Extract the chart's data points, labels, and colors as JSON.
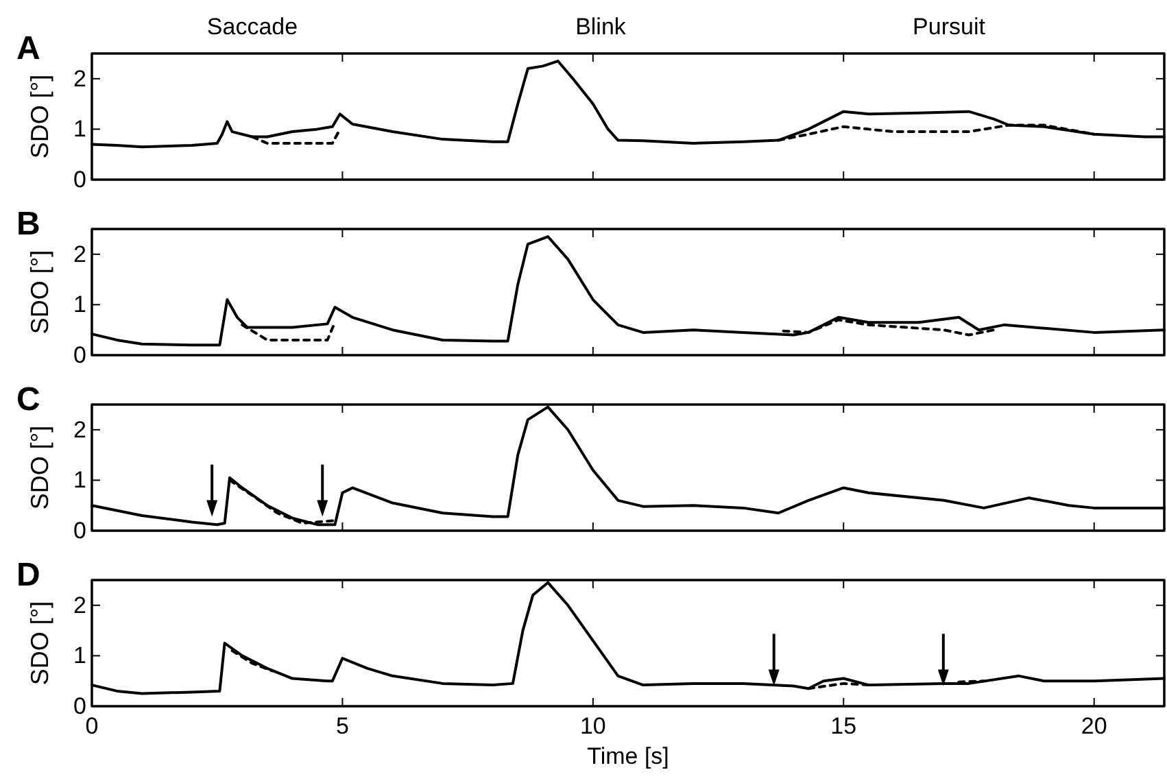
{
  "chart_data": [
    {
      "type": "line",
      "title": "A",
      "ylabel": "SDO [°]",
      "xlim": [
        0,
        21.4
      ],
      "xticks": [
        0,
        5,
        10,
        15,
        20
      ],
      "ylim": [
        0,
        2.5
      ],
      "yticks": [
        0,
        1,
        2
      ],
      "tick_labels": "y",
      "line_style": "solid",
      "annotations": [
        "Saccade",
        "Blink",
        "Pursuit"
      ],
      "series": [
        {
          "color": "#000000",
          "x": [
            0,
            0.5,
            1,
            2,
            2.5,
            2.6,
            2.7,
            2.8,
            3.2,
            3.5,
            4,
            4.5,
            4.8,
            4.95,
            5.2,
            6,
            7,
            8,
            8.3,
            8.5,
            8.7,
            9,
            9.3,
            9.6,
            10,
            10.3,
            10.5,
            11,
            12,
            13,
            13.7,
            14.3,
            15,
            15.5,
            16.5,
            17.5,
            18,
            18.3,
            19,
            20,
            21,
            21.4
          ],
          "values": [
            0.7,
            0.68,
            0.65,
            0.68,
            0.72,
            0.9,
            1.15,
            0.95,
            0.85,
            0.85,
            0.95,
            1.0,
            1.05,
            1.3,
            1.1,
            0.95,
            0.8,
            0.75,
            0.75,
            1.5,
            2.2,
            2.25,
            2.35,
            2.0,
            1.5,
            1.0,
            0.78,
            0.77,
            0.72,
            0.75,
            0.78,
            1.0,
            1.35,
            1.3,
            1.32,
            1.35,
            1.2,
            1.08,
            1.05,
            0.9,
            0.85,
            0.85
          ]
        },
        {
          "color": "#000000",
          "line_style": "dashed",
          "x": [
            3.2,
            3.5,
            4.8,
            4.95,
            10,
            13.7,
            14.3,
            15,
            16,
            17.5,
            18.3,
            19,
            20
          ],
          "values": [
            0.85,
            0.72,
            0.72,
            1.0,
            null,
            0.78,
            0.9,
            1.05,
            0.95,
            0.95,
            1.08,
            1.08,
            0.9
          ]
        }
      ]
    },
    {
      "type": "line",
      "title": "B",
      "ylabel": "SDO [°]",
      "xlim": [
        0,
        21.4
      ],
      "xticks": [
        0,
        5,
        10,
        15,
        20
      ],
      "ylim": [
        0,
        2.5
      ],
      "yticks": [
        0,
        1,
        2
      ],
      "tick_labels": "y",
      "line_style": "solid",
      "series": [
        {
          "color": "#000000",
          "x": [
            0,
            0.5,
            1,
            2,
            2.55,
            2.7,
            2.9,
            3.1,
            4,
            4.7,
            4.85,
            5.2,
            6,
            7,
            8,
            8.3,
            8.5,
            8.7,
            9.1,
            9.5,
            10,
            10.5,
            11,
            12,
            13,
            14,
            14.3,
            14.9,
            15.5,
            16.5,
            17.3,
            17.7,
            18.2,
            18.8,
            20,
            21.4
          ],
          "values": [
            0.42,
            0.3,
            0.22,
            0.2,
            0.2,
            1.1,
            0.75,
            0.55,
            0.55,
            0.62,
            0.95,
            0.75,
            0.5,
            0.3,
            0.28,
            0.28,
            1.4,
            2.2,
            2.35,
            1.9,
            1.1,
            0.6,
            0.45,
            0.5,
            0.45,
            0.4,
            0.45,
            0.75,
            0.65,
            0.65,
            0.75,
            0.5,
            0.6,
            0.55,
            0.45,
            0.5
          ]
        },
        {
          "color": "#000000",
          "line_style": "dashed",
          "x": [
            3.0,
            3.5,
            4.7,
            4.85,
            10,
            13.8,
            14.3,
            14.9,
            15.5,
            17,
            17.5,
            18
          ],
          "values": [
            0.6,
            0.3,
            0.3,
            0.65,
            null,
            0.48,
            0.45,
            0.7,
            0.6,
            0.5,
            0.4,
            0.5
          ]
        }
      ]
    },
    {
      "type": "line",
      "title": "C",
      "ylabel": "SDO [°]",
      "xlim": [
        0,
        21.4
      ],
      "xticks": [
        0,
        5,
        10,
        15,
        20
      ],
      "ylim": [
        0,
        2.5
      ],
      "yticks": [
        0,
        1,
        2
      ],
      "tick_labels": "y",
      "line_style": "solid",
      "series": [
        {
          "color": "#000000",
          "x": [
            0,
            1,
            2,
            2.5,
            2.65,
            2.75,
            3,
            3.5,
            4,
            4.5,
            4.85,
            5,
            5.2,
            6,
            7,
            8,
            8.3,
            8.5,
            8.7,
            9.1,
            9.5,
            10,
            10.5,
            11,
            12,
            13,
            13.7,
            14.3,
            15,
            15.5,
            17,
            17.8,
            18.7,
            19.5,
            20,
            21.4
          ],
          "values": [
            0.5,
            0.3,
            0.17,
            0.12,
            0.15,
            1.05,
            0.85,
            0.5,
            0.25,
            0.12,
            0.12,
            0.75,
            0.85,
            0.55,
            0.35,
            0.28,
            0.28,
            1.5,
            2.2,
            2.45,
            2.0,
            1.2,
            0.6,
            0.48,
            0.5,
            0.45,
            0.35,
            0.6,
            0.85,
            0.75,
            0.6,
            0.45,
            0.65,
            0.5,
            0.45,
            0.45
          ]
        },
        {
          "color": "#000000",
          "line_style": "dashed",
          "x": [
            2.75,
            3.2,
            3.7,
            4.2,
            4.6,
            4.85
          ],
          "values": [
            1.0,
            0.7,
            0.35,
            0.15,
            0.18,
            0.2
          ]
        }
      ]
    },
    {
      "type": "line",
      "title": "D",
      "ylabel": "SDO [°]",
      "xlabel": "Time [s]",
      "xlim": [
        0,
        21.4
      ],
      "xticks": [
        0,
        5,
        10,
        15,
        20
      ],
      "ylim": [
        0,
        2.5
      ],
      "yticks": [
        0,
        1,
        2
      ],
      "line_style": "solid",
      "series": [
        {
          "color": "#000000",
          "x": [
            0,
            0.5,
            1,
            2,
            2.55,
            2.65,
            3,
            3.5,
            4,
            4.7,
            4.8,
            5,
            5.5,
            6,
            7,
            8,
            8.4,
            8.6,
            8.8,
            9.1,
            9.5,
            10,
            10.5,
            11,
            12,
            13,
            14,
            14.3,
            14.6,
            15,
            15.5,
            17,
            17.5,
            18.5,
            19,
            20,
            21.4
          ],
          "values": [
            0.42,
            0.3,
            0.25,
            0.28,
            0.3,
            1.25,
            1.0,
            0.75,
            0.55,
            0.5,
            0.5,
            0.95,
            0.75,
            0.6,
            0.45,
            0.42,
            0.45,
            1.5,
            2.2,
            2.45,
            2.0,
            1.3,
            0.6,
            0.42,
            0.45,
            0.45,
            0.4,
            0.35,
            0.5,
            0.55,
            0.42,
            0.45,
            0.45,
            0.6,
            0.5,
            0.5,
            0.55
          ]
        },
        {
          "color": "#000000",
          "line_style": "dashed",
          "x": [
            2.8,
            3.2,
            3.6,
            10,
            14.3,
            15,
            15.5,
            16,
            17.3,
            17.8
          ],
          "values": [
            1.1,
            0.85,
            0.7,
            null,
            0.35,
            0.45,
            0.42,
            null,
            0.48,
            0.5
          ]
        }
      ]
    }
  ]
}
